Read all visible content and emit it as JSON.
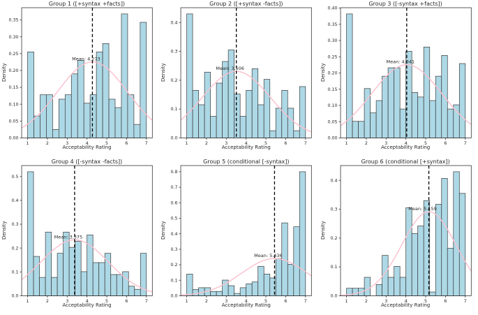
{
  "figure": {
    "background": "#ffffff",
    "bar_fill": "#add8e6",
    "bar_edge": "#3a3a3a",
    "kde_color": "#fbc0cd",
    "mean_line_color": "#000000",
    "spine_color": "#333333",
    "text_color": "#262626"
  },
  "chart_data": [
    {
      "type": "bar",
      "subtype": "histogram-with-normal-fit",
      "title": "Group 1 ([+syntax +facts])",
      "xlabel": "Acceptability Rating",
      "ylabel": "Density",
      "x_ticks": [
        1,
        2,
        3,
        4,
        5,
        6,
        7
      ],
      "xlim": [
        0.7,
        7.3
      ],
      "ylim": [
        0,
        0.3864
      ],
      "y_ticks": [
        "0.00",
        "0.05",
        "0.10",
        "0.15",
        "0.20",
        "0.25",
        "0.30",
        "0.35"
      ],
      "bin_start": 1.0,
      "bin_width": 0.31579,
      "values": [
        0.255,
        0.065,
        0.128,
        0.128,
        0.025,
        0.115,
        0.128,
        0.19,
        0.23,
        0.103,
        0.128,
        0.255,
        0.28,
        0.115,
        0.09,
        0.368,
        0.128,
        0.04,
        0.343
      ],
      "normal_fit": {
        "mean": 4.273,
        "std": 1.77
      },
      "mean": 4.273,
      "mean_label": "Mean: 4.273",
      "grid": false,
      "legend": false
    },
    {
      "type": "bar",
      "subtype": "histogram-with-normal-fit",
      "title": "Group 2 ([+syntax -facts])",
      "xlabel": "Acceptability Rating",
      "ylabel": "Density",
      "x_ticks": [
        1,
        2,
        3,
        4,
        5,
        6,
        7
      ],
      "xlim": [
        0.7,
        7.3
      ],
      "ylim": [
        0,
        0.4515
      ],
      "y_ticks": [
        "0.0",
        "0.1",
        "0.2",
        "0.3",
        "0.4"
      ],
      "bin_start": 1.0,
      "bin_width": 0.3,
      "values": [
        0.43,
        0.165,
        0.115,
        0.228,
        0.075,
        0.19,
        0.265,
        0.305,
        0.152,
        0.075,
        0.165,
        0.24,
        0.115,
        0.203,
        0.025,
        0.103,
        0.165,
        0.103,
        0.025,
        0.178
      ],
      "normal_fit": {
        "mean": 3.506,
        "std": 1.73
      },
      "mean": 3.506,
      "mean_label": "Mean: 3.506",
      "grid": false,
      "legend": false
    },
    {
      "type": "bar",
      "subtype": "histogram-with-normal-fit",
      "title": "Group 3 ([-syntax +facts])",
      "xlabel": "Acceptability Rating",
      "ylabel": "Density",
      "x_ticks": [
        1,
        2,
        3,
        4,
        5,
        6,
        7
      ],
      "xlim": [
        0.7,
        7.3
      ],
      "ylim": [
        0,
        0.4011
      ],
      "y_ticks": [
        "0.00",
        "0.05",
        "0.10",
        "0.15",
        "0.20",
        "0.25",
        "0.30",
        "0.35",
        "0.40"
      ],
      "bin_start": 1.0,
      "bin_width": 0.3,
      "values": [
        0.382,
        0.051,
        0.051,
        0.152,
        0.077,
        0.115,
        0.19,
        0.216,
        0.216,
        0.089,
        0.267,
        0.14,
        0.126,
        0.28,
        0.115,
        0.19,
        0.254,
        0.089,
        0.102,
        0.229
      ],
      "normal_fit": {
        "mean": 4.041,
        "std": 1.77
      },
      "mean": 4.041,
      "mean_label": "Mean: 4.041",
      "grid": false,
      "legend": false
    },
    {
      "type": "bar",
      "subtype": "histogram-with-normal-fit",
      "title": "Group 4 ([-syntax -facts])",
      "xlabel": "Acceptability Rating",
      "ylabel": "Density",
      "x_ticks": [
        1,
        2,
        3,
        4,
        5,
        6,
        7
      ],
      "xlim": [
        0.7,
        7.3
      ],
      "ylim": [
        0,
        0.546
      ],
      "y_ticks": [
        "0.0",
        "0.1",
        "0.2",
        "0.3",
        "0.4",
        "0.5"
      ],
      "bin_start": 1.0,
      "bin_width": 0.3,
      "values": [
        0.52,
        0.165,
        0.077,
        0.267,
        0.077,
        0.178,
        0.267,
        0.203,
        0.229,
        0.101,
        0.255,
        0.139,
        0.139,
        0.178,
        0.089,
        0.089,
        0.101,
        0.04,
        0.027,
        0.178
      ],
      "normal_fit": {
        "mean": 3.375,
        "std": 1.7
      },
      "mean": 3.375,
      "mean_label": "Mean: 3.375",
      "grid": false,
      "legend": false
    },
    {
      "type": "bar",
      "subtype": "histogram-with-normal-fit",
      "title": "Group 5 (conditional [-syntax])",
      "xlabel": "Acceptability Rating",
      "ylabel": "Density",
      "x_ticks": [
        1,
        2,
        3,
        4,
        5,
        6,
        7
      ],
      "xlim": [
        0.7,
        7.3
      ],
      "ylim": [
        0,
        0.84
      ],
      "y_ticks": [
        "0.0",
        "0.1",
        "0.2",
        "0.3",
        "0.4",
        "0.5",
        "0.6",
        "0.7",
        "0.8"
      ],
      "bin_start": 1.0,
      "bin_width": 0.3,
      "values": [
        0.14,
        0.04,
        0.052,
        0.052,
        0.028,
        0.028,
        0.101,
        0.065,
        0.015,
        0.052,
        0.077,
        0.089,
        0.19,
        0.14,
        0.115,
        0.24,
        0.47,
        0.203,
        0.445,
        0.8
      ],
      "normal_fit": {
        "mean": 5.436,
        "std": 1.66
      },
      "mean": 5.436,
      "mean_label": "Mean: 5.436",
      "grid": false,
      "legend": false
    },
    {
      "type": "bar",
      "subtype": "histogram-with-normal-fit",
      "title": "Group 6 (conditional [+syntax])",
      "xlabel": "Acceptability Rating",
      "ylabel": "Density",
      "x_ticks": [
        1,
        2,
        3,
        4,
        5,
        6,
        7
      ],
      "xlim": [
        0.7,
        7.3
      ],
      "ylim": [
        0,
        0.4515
      ],
      "y_ticks": [
        "0.0",
        "0.1",
        "0.2",
        "0.3",
        "0.4"
      ],
      "bin_start": 1.0,
      "bin_width": 0.3,
      "values": [
        0.026,
        0.026,
        0.026,
        0.064,
        0,
        0.039,
        0.14,
        0.064,
        0.102,
        0.064,
        0.305,
        0.216,
        0.242,
        0.33,
        0.013,
        0.317,
        0.407,
        0.165,
        0.43,
        0.355
      ],
      "normal_fit": {
        "mean": 5.159,
        "std": 1.37
      },
      "mean": 5.159,
      "mean_label": "Mean: 5.159",
      "grid": false,
      "legend": false
    }
  ]
}
